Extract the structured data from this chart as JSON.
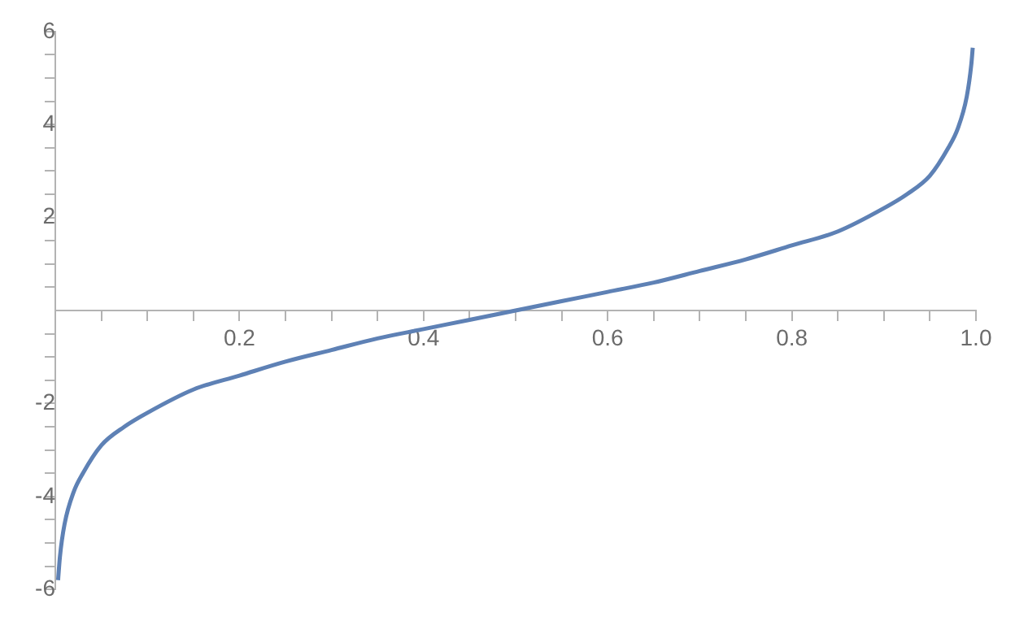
{
  "chart_data": {
    "type": "line",
    "color": "#5e81b5",
    "marker": "none",
    "line_style": "solid",
    "grid": false,
    "legend": false,
    "x": [
      0.003,
      0.005,
      0.01,
      0.02,
      0.03,
      0.05,
      0.075,
      0.1,
      0.15,
      0.2,
      0.25,
      0.3,
      0.35,
      0.4,
      0.45,
      0.5,
      0.55,
      0.6,
      0.65,
      0.7,
      0.75,
      0.8,
      0.85,
      0.9,
      0.925,
      0.95,
      0.97,
      0.98,
      0.99,
      0.995,
      0.9965
    ],
    "values": [
      -5.8,
      -5.3,
      -4.6,
      -3.9,
      -3.5,
      -2.9,
      -2.5,
      -2.2,
      -1.7,
      -1.4,
      -1.1,
      -0.85,
      -0.6,
      -0.4,
      -0.2,
      0,
      0.2,
      0.4,
      0.6,
      0.85,
      1.1,
      1.4,
      1.7,
      2.2,
      2.5,
      2.9,
      3.5,
      3.9,
      4.6,
      5.3,
      5.65
    ],
    "xlim": [
      0,
      1
    ],
    "xticks": [
      {
        "value": 0.05,
        "label": null
      },
      {
        "value": 0.1,
        "label": null
      },
      {
        "value": 0.15,
        "label": null
      },
      0.2,
      {
        "value": 0.25,
        "label": null
      },
      {
        "value": 0.3,
        "label": null
      },
      {
        "value": 0.35,
        "label": null
      },
      0.4,
      {
        "value": 0.45,
        "label": null
      },
      {
        "value": 0.5,
        "label": null
      },
      {
        "value": 0.55,
        "label": null
      },
      0.6,
      {
        "value": 0.65,
        "label": null
      },
      {
        "value": 0.7,
        "label": null
      },
      {
        "value": 0.75,
        "label": null
      },
      0.8,
      {
        "value": 0.85,
        "label": null
      },
      {
        "value": 0.9,
        "label": null
      },
      {
        "value": 0.95,
        "label": null
      },
      {
        "value": 1,
        "label": "1.0"
      }
    ],
    "ylim": [
      -6,
      6
    ],
    "yticks": [
      -6,
      {
        "value": -5.5,
        "label": null
      },
      {
        "value": -5,
        "label": null
      },
      {
        "value": -4.5,
        "label": null
      },
      -4,
      {
        "value": -3.5,
        "label": null
      },
      {
        "value": -3,
        "label": null
      },
      {
        "value": -2.5,
        "label": null
      },
      -2,
      {
        "value": -1.5,
        "label": null
      },
      {
        "value": -1,
        "label": null
      },
      {
        "value": -0.5,
        "label": null
      },
      {
        "value": 0.5,
        "label": null
      },
      {
        "value": 1,
        "label": null
      },
      {
        "value": 1.5,
        "label": null
      },
      2,
      {
        "value": 2.5,
        "label": null
      },
      {
        "value": 3,
        "label": null
      },
      {
        "value": 3.5,
        "label": null
      },
      4,
      {
        "value": 4.5,
        "label": null
      },
      {
        "value": 5,
        "label": null
      },
      {
        "value": 5.5,
        "label": null
      },
      6
    ]
  }
}
